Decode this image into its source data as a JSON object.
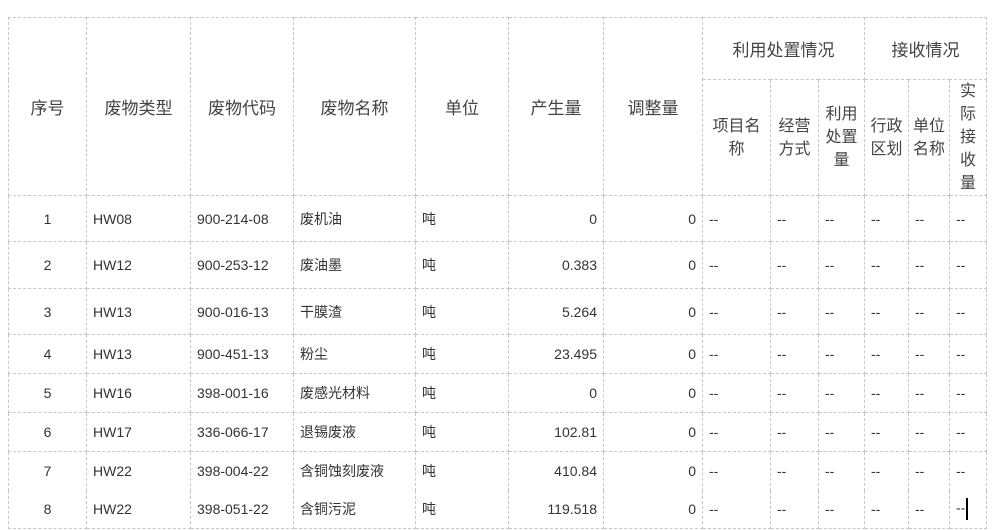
{
  "headers": {
    "seq": "序号",
    "type": "废物类型",
    "code": "废物代码",
    "name": "废物名称",
    "unit": "单位",
    "produced": "产生量",
    "adjust": "调整量",
    "disposal_group": "利用处置情况",
    "receive_group": "接收情况",
    "project_name": "项目名称",
    "operation_mode": "经营方式",
    "disposal_amount": "利用处置量",
    "admin_region": "行政区划",
    "unit_name": "单位名称",
    "actual_received": "实际接收量"
  },
  "rows": [
    {
      "seq": "1",
      "type": "HW08",
      "code": "900-214-08",
      "name": "废机油",
      "unit": "吨",
      "produced": "0",
      "adjust": "0",
      "c1": "--",
      "c2": "--",
      "c3": "--",
      "c4": "--",
      "c5": "--",
      "c6": "--"
    },
    {
      "seq": "2",
      "type": "HW12",
      "code": "900-253-12",
      "name": "废油墨",
      "unit": "吨",
      "produced": "0.383",
      "adjust": "0",
      "c1": "--",
      "c2": "--",
      "c3": "--",
      "c4": "--",
      "c5": "--",
      "c6": "--"
    },
    {
      "seq": "3",
      "type": "HW13",
      "code": "900-016-13",
      "name": "干膜渣",
      "unit": "吨",
      "produced": "5.264",
      "adjust": "0",
      "c1": "--",
      "c2": "--",
      "c3": "--",
      "c4": "--",
      "c5": "--",
      "c6": "--"
    },
    {
      "seq": "4",
      "type": "HW13",
      "code": "900-451-13",
      "name": "粉尘",
      "unit": "吨",
      "produced": "23.495",
      "adjust": "0",
      "c1": "--",
      "c2": "--",
      "c3": "--",
      "c4": "--",
      "c5": "--",
      "c6": "--"
    },
    {
      "seq": "5",
      "type": "HW16",
      "code": "398-001-16",
      "name": "废感光材料",
      "unit": "吨",
      "produced": "0",
      "adjust": "0",
      "c1": "--",
      "c2": "--",
      "c3": "--",
      "c4": "--",
      "c5": "--",
      "c6": "--"
    },
    {
      "seq": "6",
      "type": "HW17",
      "code": "336-066-17",
      "name": "退锡废液",
      "unit": "吨",
      "produced": "102.81",
      "adjust": "0",
      "c1": "--",
      "c2": "--",
      "c3": "--",
      "c4": "--",
      "c5": "--",
      "c6": "--"
    },
    {
      "seq": "7",
      "type": "HW22",
      "code": "398-004-22",
      "name": "含铜蚀刻废液",
      "unit": "吨",
      "produced": "410.84",
      "adjust": "0",
      "c1": "--",
      "c2": "--",
      "c3": "--",
      "c4": "--",
      "c5": "--",
      "c6": "--"
    },
    {
      "seq": "8",
      "type": "HW22",
      "code": "398-051-22",
      "name": "含铜污泥",
      "unit": "吨",
      "produced": "119.518",
      "adjust": "0",
      "c1": "--",
      "c2": "--",
      "c3": "--",
      "c4": "--",
      "c5": "--",
      "c6": "--"
    }
  ]
}
